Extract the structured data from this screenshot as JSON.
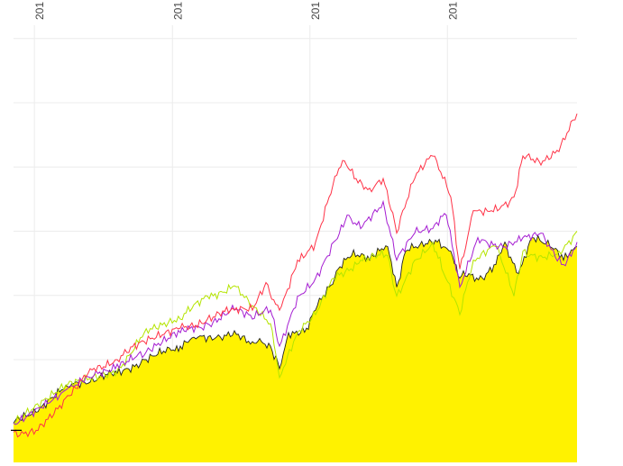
{
  "chart_data": {
    "type": "line",
    "title": "",
    "xlabel": "",
    "ylabel": "",
    "xlim": [
      0,
      100
    ],
    "ylim": [
      -6,
      66
    ],
    "grid": true,
    "legend": "none",
    "x_ticks": [
      {
        "value": 3.7,
        "label": "201"
      },
      {
        "value": 28.2,
        "label": "201"
      },
      {
        "value": 52.6,
        "label": "201"
      },
      {
        "value": 77.0,
        "label": "201"
      }
    ],
    "y_gridlines": [
      0,
      10,
      20,
      30,
      40,
      50,
      60
    ],
    "baseline_marker": -1,
    "series": [
      {
        "name": "yellow-area",
        "color": "#fff200",
        "stroke": "#222222",
        "fill": true,
        "x": [
          0,
          4,
          9.6,
          13.6,
          18.4,
          23.2,
          28,
          29.6,
          32,
          36,
          39.2,
          42.4,
          44,
          45.6,
          47.2,
          48.8,
          52,
          53.6,
          56,
          57.6,
          60,
          63.2,
          66.4,
          68,
          69.6,
          72.8,
          75.2,
          77.6,
          79.2,
          80.8,
          83.2,
          85.6,
          87.2,
          89.6,
          92,
          95.2,
          97.6,
          100
        ],
        "y": [
          0.1,
          1.8,
          5.8,
          6.5,
          7.9,
          10.0,
          11.4,
          12.1,
          13.5,
          13.5,
          14.5,
          12.8,
          12.8,
          12.1,
          8.6,
          14.2,
          14.9,
          17.7,
          21.3,
          24.1,
          26.2,
          25.5,
          27.6,
          21.3,
          26.9,
          27.6,
          28.3,
          26.9,
          22.7,
          23.4,
          22.7,
          24.8,
          28.3,
          23.4,
          29.0,
          27.6,
          25.5,
          27.6
        ]
      },
      {
        "name": "green",
        "color": "#b4e400",
        "x": [
          0,
          9.6,
          18.4,
          23.2,
          29.6,
          34.4,
          39.2,
          42.4,
          45.6,
          47.2,
          50.4,
          53.6,
          56.8,
          61.6,
          66.4,
          68,
          71.2,
          74.4,
          76,
          79.2,
          81.6,
          85.6,
          88.8,
          90.4,
          93.6,
          96.8,
          100
        ],
        "y": [
          0.1,
          6.1,
          8.3,
          14.2,
          16.3,
          19.9,
          21.5,
          18.4,
          15.6,
          7.2,
          14.2,
          17.0,
          22.7,
          25.5,
          26.2,
          19.9,
          25.5,
          28.3,
          24.1,
          17.0,
          25.5,
          27.6,
          19.9,
          26.9,
          26.2,
          26.9,
          30.0
        ]
      },
      {
        "name": "purple",
        "color": "#a51ed2",
        "x": [
          0,
          9.6,
          13.6,
          18.4,
          23.2,
          29.6,
          34.4,
          39.2,
          42.4,
          45.6,
          47.2,
          50.4,
          53.6,
          56.8,
          59.2,
          61.6,
          65.6,
          68,
          71.2,
          74.4,
          76.8,
          79.2,
          82.4,
          87.2,
          90.4,
          93.6,
          97.6,
          100
        ],
        "y": [
          0.1,
          5.5,
          7.2,
          9.3,
          10.7,
          14.2,
          15.6,
          17.7,
          16.3,
          17.7,
          12.1,
          19.9,
          22.7,
          28.3,
          32.5,
          30.4,
          34.6,
          25.5,
          29.7,
          30.4,
          32.5,
          21.3,
          29.0,
          27.6,
          29.0,
          29.7,
          24.8,
          28.3
        ]
      },
      {
        "name": "red",
        "color": "#ff3347",
        "x": [
          0,
          4,
          9.6,
          13.6,
          18.4,
          23.2,
          29.6,
          34.4,
          39.2,
          42.4,
          44.8,
          47.2,
          50.4,
          53.6,
          56,
          58.4,
          60.8,
          63.2,
          65.6,
          68,
          71.2,
          74.4,
          77.6,
          79.2,
          81.6,
          84.8,
          88.8,
          90.4,
          93.6,
          96.8,
          100
        ],
        "y": [
          -1.3,
          -1.0,
          4.4,
          8.6,
          10.0,
          12.8,
          14.9,
          16.3,
          17.7,
          17.7,
          22.0,
          17.7,
          25.5,
          28.3,
          35.3,
          41.0,
          38.2,
          36.7,
          38.2,
          29.7,
          38.2,
          41.7,
          35.3,
          24.1,
          33.2,
          33.2,
          35.3,
          41.7,
          40.3,
          42.4,
          48.3
        ]
      }
    ]
  }
}
